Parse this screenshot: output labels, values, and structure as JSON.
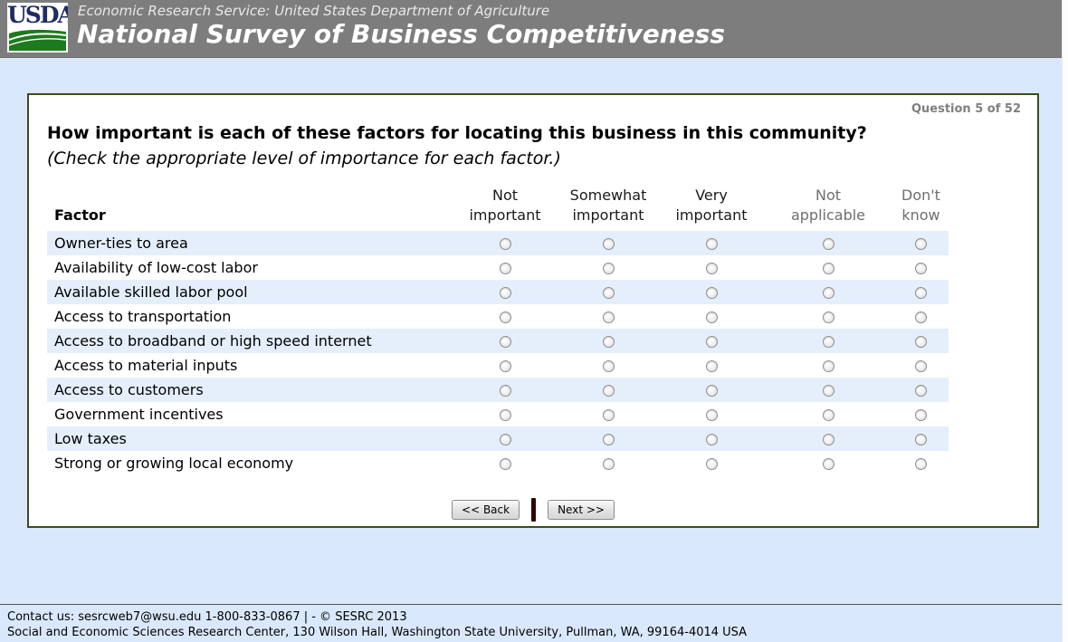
{
  "header": {
    "logo_text": "USDA",
    "agency_line": "Economic Research Service: United States Department of Agriculture",
    "survey_title": "National Survey of Business Competitiveness"
  },
  "question": {
    "counter": "Question 5 of 52",
    "prompt_bold": "How important is each of these factors for locating this business in this community?",
    "prompt_note": "(Check the appropriate level of importance for each factor.)"
  },
  "table": {
    "factor_header": "Factor",
    "columns": [
      {
        "label": "Not\nimportant",
        "muted": false
      },
      {
        "label": "Somewhat\nimportant",
        "muted": false
      },
      {
        "label": "Very\nimportant",
        "muted": false
      },
      {
        "label": "Not\napplicable",
        "muted": true
      },
      {
        "label": "Don't\nknow",
        "muted": true
      }
    ],
    "rows": [
      "Owner-ties to area",
      "Availability of low-cost labor",
      "Available skilled labor pool",
      "Access to transportation",
      "Access to broadband or high speed internet",
      "Access to material inputs",
      "Access to customers",
      "Government incentives",
      "Low taxes",
      "Strong or growing local economy"
    ],
    "selected": null
  },
  "nav": {
    "back_label": "<< Back",
    "next_label": "Next >>"
  },
  "footer": {
    "line1": "Contact us: sesrcweb7@wsu.edu 1-800-833-0867 | - © SESRC 2013",
    "line2": "Social and Economic Sciences Research Center, 130 Wilson Hall, Washington State University, Pullman, WA, 99164-4014 USA"
  },
  "colors": {
    "header_bg": "#7d7d7d",
    "page_bg": "#d9e8fa",
    "row_alt_bg": "#e5effc",
    "box_border": "#3d4b1d",
    "muted_text": "#6f6f6f",
    "nav_divider": "#2e0703",
    "logo_green": "#1e7a1e",
    "logo_navy": "#1f2d62"
  }
}
